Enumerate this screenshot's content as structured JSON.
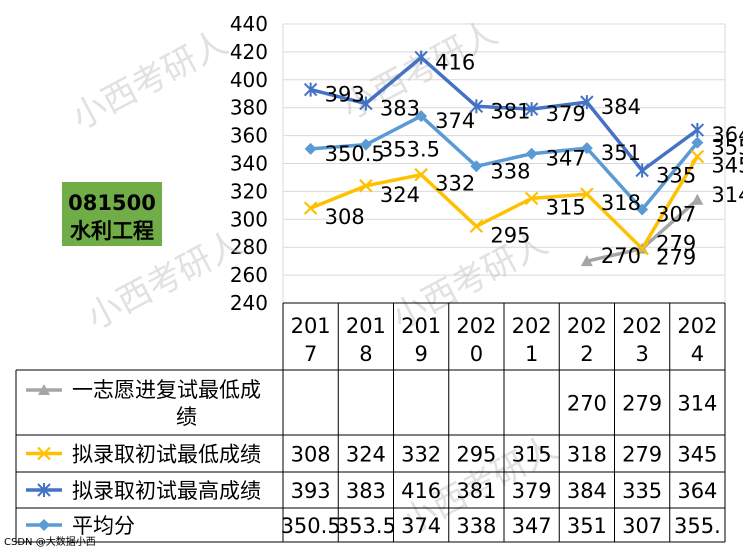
{
  "badge": {
    "code": "081500",
    "name": "水利工程",
    "bg": "#70AD47"
  },
  "watermark_text": "小西考研人",
  "footer_text": "CSDN @大数据小西",
  "chart_data": {
    "type": "line",
    "categories": [
      "2017",
      "2018",
      "2019",
      "2020",
      "2021",
      "2022",
      "2023",
      "2024"
    ],
    "ylim": [
      240,
      440
    ],
    "yticks": [
      240,
      260,
      280,
      300,
      320,
      340,
      360,
      380,
      400,
      420,
      440
    ],
    "grid": true,
    "legend": "table-below",
    "series": [
      {
        "name": "一志愿进复试最低成绩",
        "color": "#A5A5A5",
        "marker": "triangle",
        "values": [
          null,
          null,
          null,
          null,
          null,
          270,
          279,
          314
        ],
        "labels": [
          "",
          "",
          "",
          "",
          "",
          "270",
          "279",
          "314"
        ]
      },
      {
        "name": "拟录取初试最低成绩",
        "color": "#FFC000",
        "marker": "x",
        "values": [
          308,
          324,
          332,
          295,
          315,
          318,
          279,
          345
        ],
        "labels": [
          "308",
          "324",
          "332",
          "295",
          "315",
          "318",
          "279",
          "345"
        ]
      },
      {
        "name": "拟录取初试最高成绩",
        "color": "#4472C4",
        "marker": "star",
        "values": [
          393,
          383,
          416,
          381,
          379,
          384,
          335,
          364
        ],
        "labels": [
          "393",
          "383",
          "416",
          "381",
          "379",
          "384",
          "335",
          "364"
        ]
      },
      {
        "name": "平均分",
        "color": "#5B9BD5",
        "marker": "diamond",
        "values": [
          350.5,
          353.5,
          374,
          338,
          347,
          351,
          307,
          355
        ],
        "labels": [
          "350.5",
          "353.5",
          "374",
          "338",
          "347",
          "351",
          "307",
          "355."
        ]
      }
    ]
  }
}
